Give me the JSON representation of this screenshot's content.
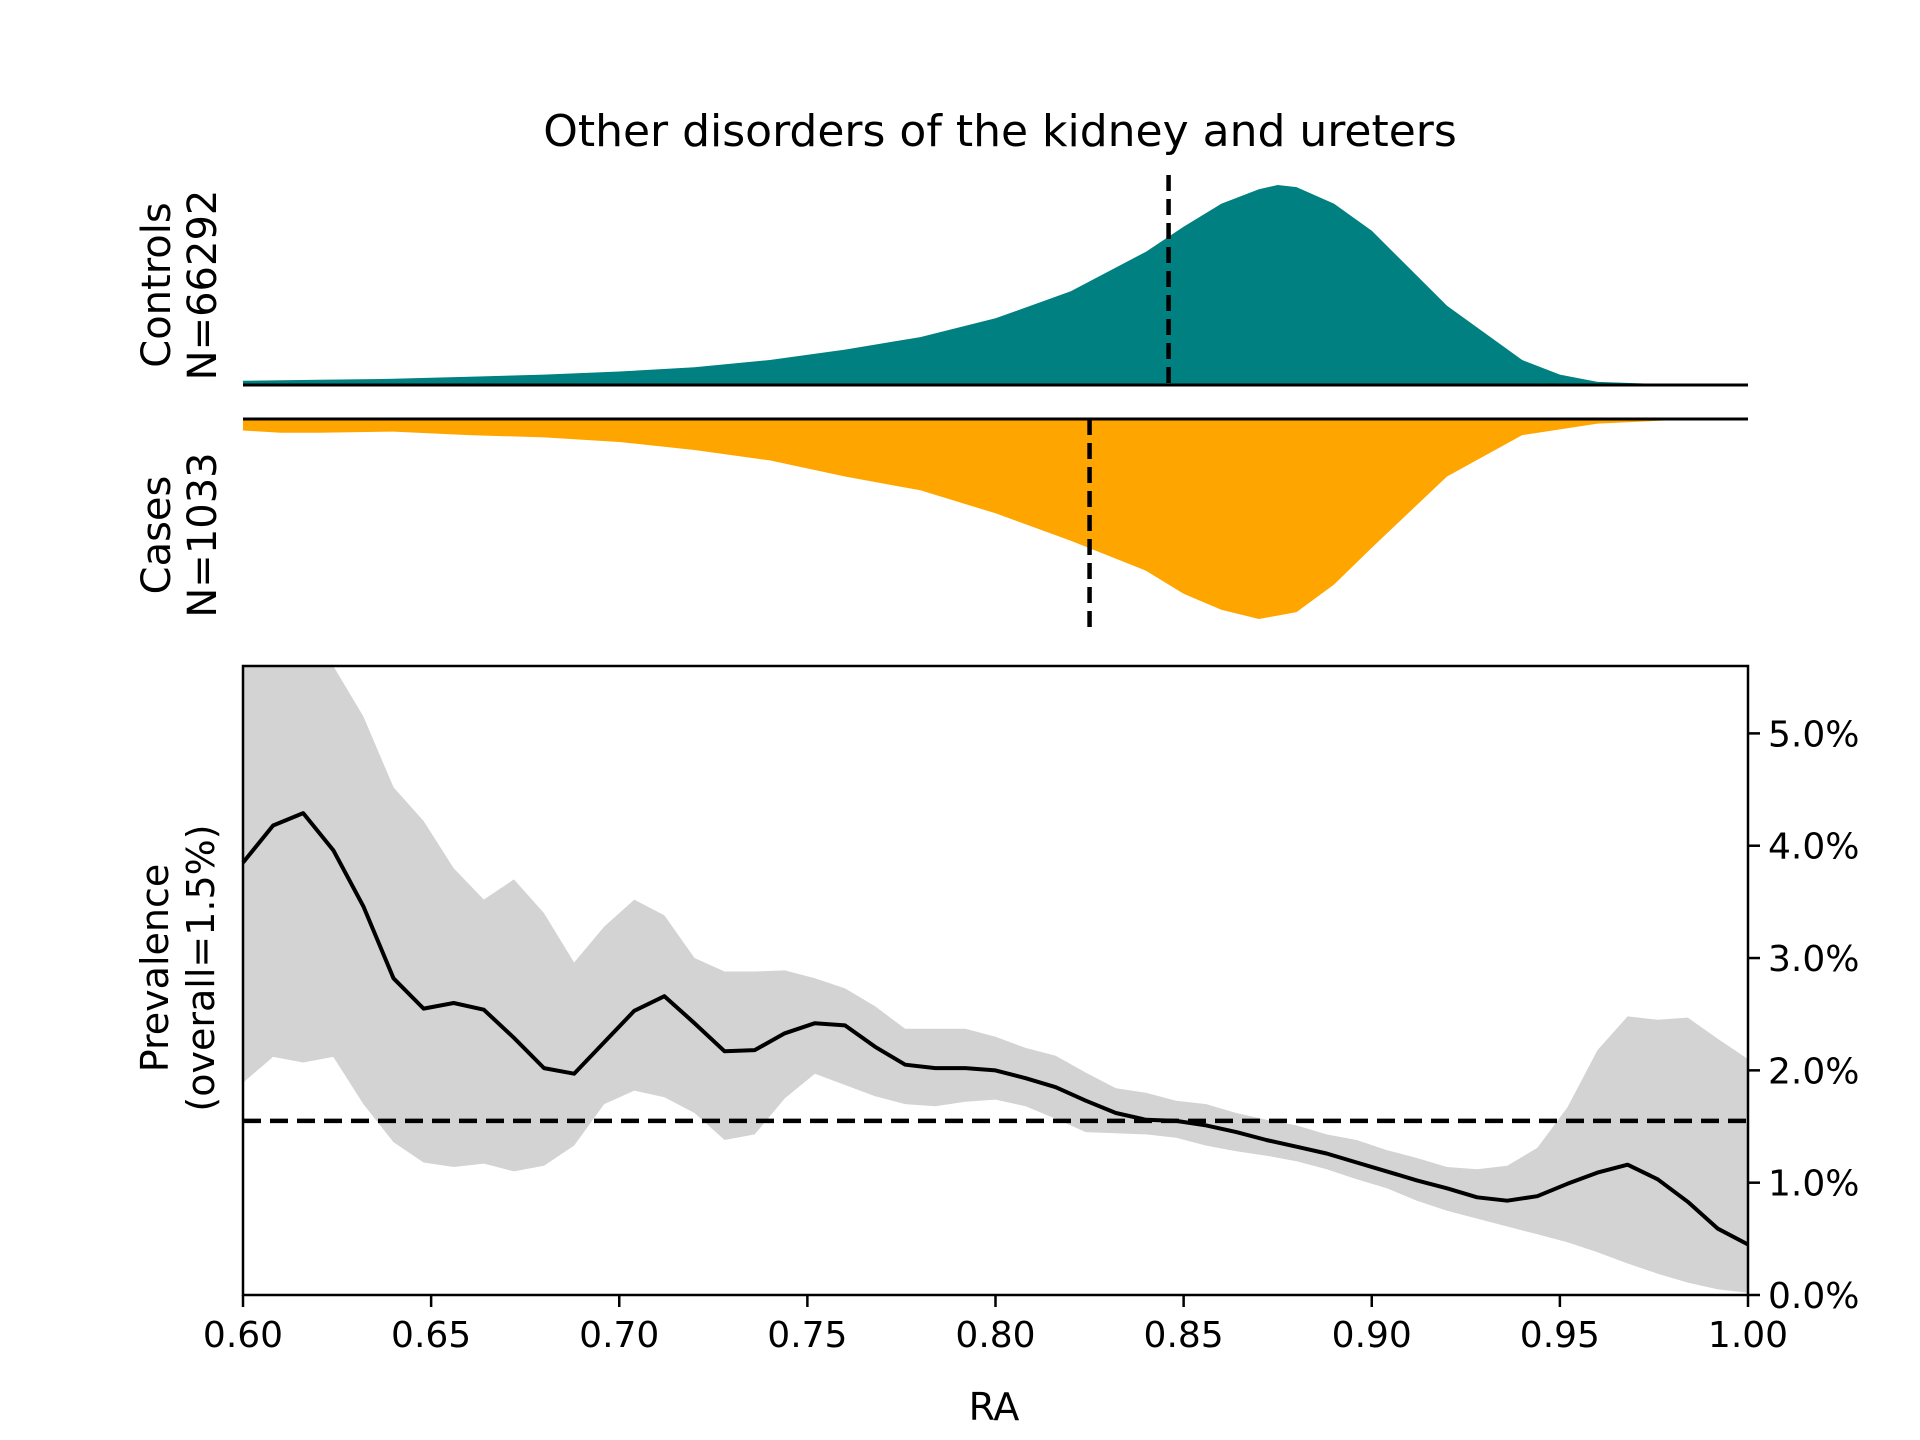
{
  "chart_data": {
    "type": "area",
    "title": "Other disorders of the kidney and ureters",
    "colors": {
      "controls": "#008080",
      "cases": "#FFA500",
      "ci_band": "#D3D3D3",
      "line": "#000000"
    },
    "controls": {
      "label_line1": "Controls",
      "label_line2": "N=66292",
      "median": 0.846,
      "x": [
        0.6,
        0.62,
        0.64,
        0.66,
        0.68,
        0.7,
        0.72,
        0.74,
        0.76,
        0.78,
        0.8,
        0.82,
        0.84,
        0.85,
        0.86,
        0.87,
        0.875,
        0.88,
        0.89,
        0.9,
        0.92,
        0.94,
        0.95,
        0.96,
        0.98,
        1.0
      ],
      "density": [
        0.02,
        0.025,
        0.03,
        0.04,
        0.05,
        0.065,
        0.085,
        0.12,
        0.17,
        0.23,
        0.32,
        0.45,
        0.64,
        0.76,
        0.87,
        0.94,
        0.96,
        0.95,
        0.87,
        0.74,
        0.38,
        0.12,
        0.05,
        0.015,
        0.003,
        0.0
      ]
    },
    "cases": {
      "label_line1": "Cases",
      "label_line2": "N=1033",
      "median": 0.825,
      "x": [
        0.6,
        0.61,
        0.62,
        0.64,
        0.66,
        0.68,
        0.7,
        0.72,
        0.74,
        0.76,
        0.78,
        0.8,
        0.82,
        0.84,
        0.85,
        0.86,
        0.87,
        0.88,
        0.89,
        0.9,
        0.92,
        0.94,
        0.96,
        0.98,
        1.0
      ],
      "density": [
        0.05,
        0.06,
        0.06,
        0.055,
        0.07,
        0.08,
        0.1,
        0.135,
        0.18,
        0.25,
        0.31,
        0.41,
        0.53,
        0.66,
        0.76,
        0.83,
        0.87,
        0.84,
        0.72,
        0.56,
        0.25,
        0.07,
        0.02,
        0.005,
        0.0
      ]
    },
    "prevalence": {
      "ylabel_line1": "Prevalence",
      "ylabel_line2": "(overall=1.5%)",
      "xlabel": "RA",
      "overall": 1.55,
      "xlim": [
        0.6,
        1.0
      ],
      "ylim": [
        0.0,
        5.6
      ],
      "xticks": [
        "0.60",
        "0.65",
        "0.70",
        "0.75",
        "0.80",
        "0.85",
        "0.90",
        "0.95",
        "1.00"
      ],
      "yticks": [
        "0.0%",
        "1.0%",
        "2.0%",
        "3.0%",
        "4.0%",
        "5.0%"
      ],
      "x": [
        0.6,
        0.608,
        0.616,
        0.624,
        0.632,
        0.64,
        0.648,
        0.656,
        0.664,
        0.672,
        0.68,
        0.688,
        0.696,
        0.704,
        0.712,
        0.72,
        0.728,
        0.736,
        0.744,
        0.752,
        0.76,
        0.768,
        0.776,
        0.784,
        0.792,
        0.8,
        0.808,
        0.816,
        0.824,
        0.832,
        0.84,
        0.848,
        0.856,
        0.864,
        0.872,
        0.88,
        0.888,
        0.896,
        0.904,
        0.912,
        0.92,
        0.928,
        0.936,
        0.944,
        0.952,
        0.96,
        0.968,
        0.976,
        0.984,
        0.992,
        1.0
      ],
      "y": [
        3.85,
        4.18,
        4.29,
        3.96,
        3.46,
        2.82,
        2.55,
        2.6,
        2.54,
        2.29,
        2.02,
        1.97,
        2.25,
        2.53,
        2.66,
        2.42,
        2.17,
        2.18,
        2.33,
        2.42,
        2.4,
        2.21,
        2.05,
        2.02,
        2.02,
        2.0,
        1.93,
        1.85,
        1.73,
        1.62,
        1.56,
        1.55,
        1.51,
        1.45,
        1.38,
        1.32,
        1.26,
        1.18,
        1.1,
        1.02,
        0.95,
        0.87,
        0.84,
        0.88,
        0.99,
        1.09,
        1.16,
        1.03,
        0.83,
        0.59,
        0.45
      ],
      "upper": [
        6.2,
        6.2,
        6.2,
        6.2,
        5.15,
        4.52,
        4.22,
        3.8,
        3.52,
        3.7,
        3.4,
        2.96,
        3.28,
        3.52,
        3.38,
        3.0,
        2.88,
        2.88,
        2.89,
        2.82,
        2.73,
        2.57,
        2.37,
        2.37,
        2.37,
        2.3,
        2.2,
        2.13,
        1.98,
        1.84,
        1.8,
        1.73,
        1.7,
        1.62,
        1.56,
        1.51,
        1.43,
        1.38,
        1.29,
        1.22,
        1.14,
        1.12,
        1.15,
        1.31,
        1.67,
        2.18,
        2.48,
        2.45,
        2.47,
        2.28,
        2.1
      ],
      "lower": [
        1.89,
        2.12,
        2.07,
        2.12,
        1.7,
        1.36,
        1.18,
        1.14,
        1.17,
        1.1,
        1.15,
        1.33,
        1.7,
        1.82,
        1.76,
        1.62,
        1.38,
        1.43,
        1.75,
        1.97,
        1.87,
        1.77,
        1.7,
        1.68,
        1.72,
        1.74,
        1.68,
        1.57,
        1.45,
        1.44,
        1.43,
        1.4,
        1.33,
        1.28,
        1.24,
        1.19,
        1.12,
        1.03,
        0.95,
        0.84,
        0.75,
        0.68,
        0.61,
        0.54,
        0.47,
        0.38,
        0.28,
        0.19,
        0.11,
        0.05,
        0.02
      ]
    }
  }
}
